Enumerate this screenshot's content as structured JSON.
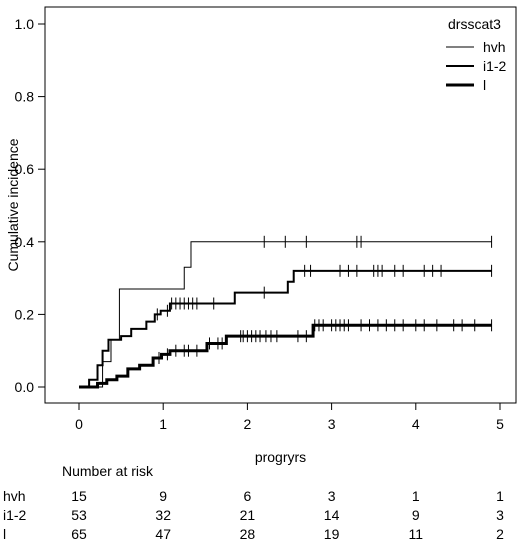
{
  "chart_data": {
    "type": "line",
    "subtype": "cumulative-incidence-step",
    "xlabel": "progryrs",
    "ylabel": "Cumulative incidence",
    "xlim": [
      0,
      5
    ],
    "ylim": [
      0,
      1.0
    ],
    "x_ticks": [
      "0",
      "1",
      "2",
      "3",
      "4",
      "5"
    ],
    "y_ticks": [
      "0.0",
      "0.2",
      "0.4",
      "0.6",
      "0.8",
      "1.0"
    ],
    "grid": false,
    "legend": {
      "title": "drsscat3",
      "placement": "top-right",
      "entries": [
        "hvh",
        "i1-2",
        "l"
      ]
    },
    "series": [
      {
        "name": "hvh",
        "line_weight": "thin",
        "steps": [
          [
            0,
            0
          ],
          [
            0.28,
            0.07
          ],
          [
            0.38,
            0.13
          ],
          [
            0.48,
            0.27
          ],
          [
            1.25,
            0.33
          ],
          [
            1.33,
            0.4
          ],
          [
            4.9,
            0.4
          ]
        ],
        "censor": [
          2.2,
          2.45,
          2.7,
          3.3,
          3.35,
          4.9
        ]
      },
      {
        "name": "i1-2",
        "line_weight": "medium",
        "steps": [
          [
            0,
            0
          ],
          [
            0.12,
            0.02
          ],
          [
            0.22,
            0.06
          ],
          [
            0.28,
            0.1
          ],
          [
            0.35,
            0.13
          ],
          [
            0.5,
            0.14
          ],
          [
            0.62,
            0.16
          ],
          [
            0.8,
            0.18
          ],
          [
            0.9,
            0.2
          ],
          [
            0.97,
            0.21
          ],
          [
            1.08,
            0.23
          ],
          [
            1.78,
            0.23
          ],
          [
            1.85,
            0.26
          ],
          [
            2.42,
            0.26
          ],
          [
            2.48,
            0.29
          ],
          [
            2.55,
            0.32
          ],
          [
            4.9,
            0.32
          ]
        ],
        "censor": [
          0.93,
          1.05,
          1.1,
          1.15,
          1.2,
          1.25,
          1.3,
          1.35,
          1.4,
          1.6,
          2.2,
          2.68,
          2.75,
          3.1,
          3.2,
          3.3,
          3.5,
          3.55,
          3.6,
          3.75,
          3.85,
          4.1,
          4.2,
          4.3,
          4.9
        ]
      },
      {
        "name": "l",
        "line_weight": "thick",
        "steps": [
          [
            0,
            0
          ],
          [
            0.22,
            0.01
          ],
          [
            0.33,
            0.02
          ],
          [
            0.45,
            0.03
          ],
          [
            0.58,
            0.05
          ],
          [
            0.72,
            0.06
          ],
          [
            0.88,
            0.08
          ],
          [
            0.98,
            0.09
          ],
          [
            1.08,
            0.1
          ],
          [
            1.48,
            0.1
          ],
          [
            1.52,
            0.12
          ],
          [
            1.75,
            0.14
          ],
          [
            2.78,
            0.17
          ],
          [
            4.9,
            0.17
          ]
        ],
        "censor": [
          0.95,
          1.05,
          1.15,
          1.25,
          1.3,
          1.4,
          1.55,
          1.65,
          1.7,
          1.92,
          1.95,
          2.0,
          2.05,
          2.1,
          2.15,
          2.22,
          2.28,
          2.35,
          2.6,
          2.7,
          2.8,
          2.85,
          2.9,
          3.0,
          3.05,
          3.1,
          3.15,
          3.2,
          3.35,
          3.45,
          3.55,
          3.65,
          3.75,
          3.85,
          4.0,
          4.1,
          4.25,
          4.45,
          4.55,
          4.7,
          4.9
        ]
      }
    ],
    "risk_table": {
      "title": "Number at risk",
      "times": [
        0,
        1,
        2,
        3,
        4,
        5
      ],
      "rows": [
        {
          "label": "hvh",
          "values": [
            "15",
            "9",
            "6",
            "3",
            "1",
            "1"
          ]
        },
        {
          "label": "i1-2",
          "values": [
            "53",
            "32",
            "21",
            "14",
            "9",
            "3"
          ]
        },
        {
          "label": "l",
          "values": [
            "65",
            "47",
            "28",
            "19",
            "11",
            "2"
          ]
        }
      ]
    }
  }
}
